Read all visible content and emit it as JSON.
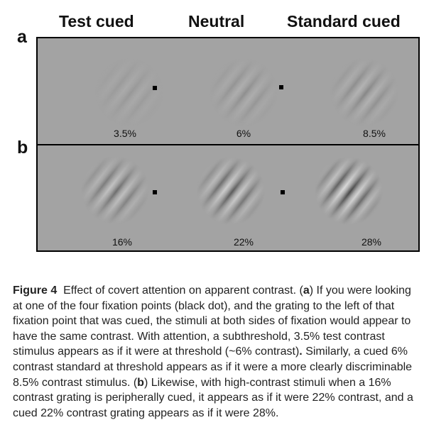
{
  "headers": [
    "Test cued",
    "Neutral",
    "Standard cued"
  ],
  "panel_a": {
    "letter": "a",
    "values": [
      "3.5%",
      "6%",
      "8.5%"
    ],
    "contrasts": [
      0.035,
      0.06,
      0.085
    ]
  },
  "panel_b": {
    "letter": "b",
    "values": [
      "16%",
      "22%",
      "28%"
    ],
    "contrasts": [
      0.16,
      0.22,
      0.28
    ]
  },
  "caption": {
    "figure_label": "Figure 4",
    "t1": "Effect of covert attention on apparent contrast. (",
    "a": "a",
    "t2": ") If you were looking at one of the four fixation points (black dot), and the grating to the left of that fixation point that was cued, the stimuli at both sides of fixation would appear to have the same contrast. With attention, a subthreshold, 3.5% test contrast stimulus appears as if it were at threshold (~6% contrast)",
    "dot": ".",
    "t3": " Similarly, a cued 6% contrast standard at threshold appears as if it were a more clearly discriminable 8.5% contrast stimulus. (",
    "b": "b",
    "t4": ") Likewise, with high-contrast stimuli when a 16% contrast grating is peripherally cued, it appears as if it were 22% contrast, and a cued 22% contrast grating appears as if it were 28%."
  }
}
